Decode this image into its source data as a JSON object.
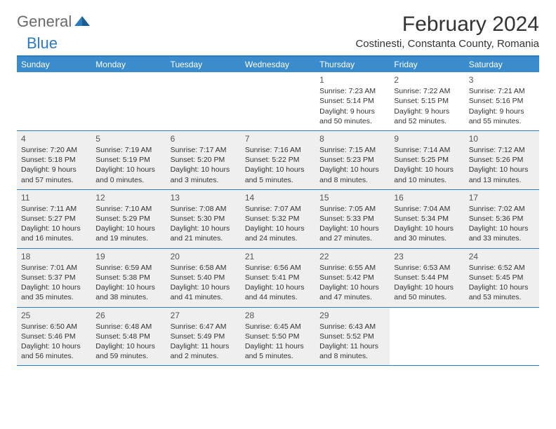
{
  "logo": {
    "general": "General",
    "blue": "Blue"
  },
  "title": "February 2024",
  "location": "Costinesti, Constanta County, Romania",
  "colors": {
    "header_bg": "#3a8ccc",
    "border": "#2a7bbf",
    "shaded": "#efefef",
    "text": "#333333"
  },
  "day_headers": [
    "Sunday",
    "Monday",
    "Tuesday",
    "Wednesday",
    "Thursday",
    "Friday",
    "Saturday"
  ],
  "weeks": [
    [
      {
        "num": "",
        "sunrise": "",
        "sunset": "",
        "daylight": "",
        "shaded": false
      },
      {
        "num": "",
        "sunrise": "",
        "sunset": "",
        "daylight": "",
        "shaded": false
      },
      {
        "num": "",
        "sunrise": "",
        "sunset": "",
        "daylight": "",
        "shaded": false
      },
      {
        "num": "",
        "sunrise": "",
        "sunset": "",
        "daylight": "",
        "shaded": false
      },
      {
        "num": "1",
        "sunrise": "Sunrise: 7:23 AM",
        "sunset": "Sunset: 5:14 PM",
        "daylight": "Daylight: 9 hours and 50 minutes.",
        "shaded": false
      },
      {
        "num": "2",
        "sunrise": "Sunrise: 7:22 AM",
        "sunset": "Sunset: 5:15 PM",
        "daylight": "Daylight: 9 hours and 52 minutes.",
        "shaded": false
      },
      {
        "num": "3",
        "sunrise": "Sunrise: 7:21 AM",
        "sunset": "Sunset: 5:16 PM",
        "daylight": "Daylight: 9 hours and 55 minutes.",
        "shaded": false
      }
    ],
    [
      {
        "num": "4",
        "sunrise": "Sunrise: 7:20 AM",
        "sunset": "Sunset: 5:18 PM",
        "daylight": "Daylight: 9 hours and 57 minutes.",
        "shaded": true
      },
      {
        "num": "5",
        "sunrise": "Sunrise: 7:19 AM",
        "sunset": "Sunset: 5:19 PM",
        "daylight": "Daylight: 10 hours and 0 minutes.",
        "shaded": true
      },
      {
        "num": "6",
        "sunrise": "Sunrise: 7:17 AM",
        "sunset": "Sunset: 5:20 PM",
        "daylight": "Daylight: 10 hours and 3 minutes.",
        "shaded": true
      },
      {
        "num": "7",
        "sunrise": "Sunrise: 7:16 AM",
        "sunset": "Sunset: 5:22 PM",
        "daylight": "Daylight: 10 hours and 5 minutes.",
        "shaded": true
      },
      {
        "num": "8",
        "sunrise": "Sunrise: 7:15 AM",
        "sunset": "Sunset: 5:23 PM",
        "daylight": "Daylight: 10 hours and 8 minutes.",
        "shaded": true
      },
      {
        "num": "9",
        "sunrise": "Sunrise: 7:14 AM",
        "sunset": "Sunset: 5:25 PM",
        "daylight": "Daylight: 10 hours and 10 minutes.",
        "shaded": true
      },
      {
        "num": "10",
        "sunrise": "Sunrise: 7:12 AM",
        "sunset": "Sunset: 5:26 PM",
        "daylight": "Daylight: 10 hours and 13 minutes.",
        "shaded": true
      }
    ],
    [
      {
        "num": "11",
        "sunrise": "Sunrise: 7:11 AM",
        "sunset": "Sunset: 5:27 PM",
        "daylight": "Daylight: 10 hours and 16 minutes.",
        "shaded": true
      },
      {
        "num": "12",
        "sunrise": "Sunrise: 7:10 AM",
        "sunset": "Sunset: 5:29 PM",
        "daylight": "Daylight: 10 hours and 19 minutes.",
        "shaded": true
      },
      {
        "num": "13",
        "sunrise": "Sunrise: 7:08 AM",
        "sunset": "Sunset: 5:30 PM",
        "daylight": "Daylight: 10 hours and 21 minutes.",
        "shaded": true
      },
      {
        "num": "14",
        "sunrise": "Sunrise: 7:07 AM",
        "sunset": "Sunset: 5:32 PM",
        "daylight": "Daylight: 10 hours and 24 minutes.",
        "shaded": true
      },
      {
        "num": "15",
        "sunrise": "Sunrise: 7:05 AM",
        "sunset": "Sunset: 5:33 PM",
        "daylight": "Daylight: 10 hours and 27 minutes.",
        "shaded": true
      },
      {
        "num": "16",
        "sunrise": "Sunrise: 7:04 AM",
        "sunset": "Sunset: 5:34 PM",
        "daylight": "Daylight: 10 hours and 30 minutes.",
        "shaded": true
      },
      {
        "num": "17",
        "sunrise": "Sunrise: 7:02 AM",
        "sunset": "Sunset: 5:36 PM",
        "daylight": "Daylight: 10 hours and 33 minutes.",
        "shaded": true
      }
    ],
    [
      {
        "num": "18",
        "sunrise": "Sunrise: 7:01 AM",
        "sunset": "Sunset: 5:37 PM",
        "daylight": "Daylight: 10 hours and 35 minutes.",
        "shaded": true
      },
      {
        "num": "19",
        "sunrise": "Sunrise: 6:59 AM",
        "sunset": "Sunset: 5:38 PM",
        "daylight": "Daylight: 10 hours and 38 minutes.",
        "shaded": true
      },
      {
        "num": "20",
        "sunrise": "Sunrise: 6:58 AM",
        "sunset": "Sunset: 5:40 PM",
        "daylight": "Daylight: 10 hours and 41 minutes.",
        "shaded": true
      },
      {
        "num": "21",
        "sunrise": "Sunrise: 6:56 AM",
        "sunset": "Sunset: 5:41 PM",
        "daylight": "Daylight: 10 hours and 44 minutes.",
        "shaded": true
      },
      {
        "num": "22",
        "sunrise": "Sunrise: 6:55 AM",
        "sunset": "Sunset: 5:42 PM",
        "daylight": "Daylight: 10 hours and 47 minutes.",
        "shaded": true
      },
      {
        "num": "23",
        "sunrise": "Sunrise: 6:53 AM",
        "sunset": "Sunset: 5:44 PM",
        "daylight": "Daylight: 10 hours and 50 minutes.",
        "shaded": true
      },
      {
        "num": "24",
        "sunrise": "Sunrise: 6:52 AM",
        "sunset": "Sunset: 5:45 PM",
        "daylight": "Daylight: 10 hours and 53 minutes.",
        "shaded": true
      }
    ],
    [
      {
        "num": "25",
        "sunrise": "Sunrise: 6:50 AM",
        "sunset": "Sunset: 5:46 PM",
        "daylight": "Daylight: 10 hours and 56 minutes.",
        "shaded": true
      },
      {
        "num": "26",
        "sunrise": "Sunrise: 6:48 AM",
        "sunset": "Sunset: 5:48 PM",
        "daylight": "Daylight: 10 hours and 59 minutes.",
        "shaded": true
      },
      {
        "num": "27",
        "sunrise": "Sunrise: 6:47 AM",
        "sunset": "Sunset: 5:49 PM",
        "daylight": "Daylight: 11 hours and 2 minutes.",
        "shaded": true
      },
      {
        "num": "28",
        "sunrise": "Sunrise: 6:45 AM",
        "sunset": "Sunset: 5:50 PM",
        "daylight": "Daylight: 11 hours and 5 minutes.",
        "shaded": true
      },
      {
        "num": "29",
        "sunrise": "Sunrise: 6:43 AM",
        "sunset": "Sunset: 5:52 PM",
        "daylight": "Daylight: 11 hours and 8 minutes.",
        "shaded": true
      },
      {
        "num": "",
        "sunrise": "",
        "sunset": "",
        "daylight": "",
        "shaded": false
      },
      {
        "num": "",
        "sunrise": "",
        "sunset": "",
        "daylight": "",
        "shaded": false
      }
    ]
  ]
}
